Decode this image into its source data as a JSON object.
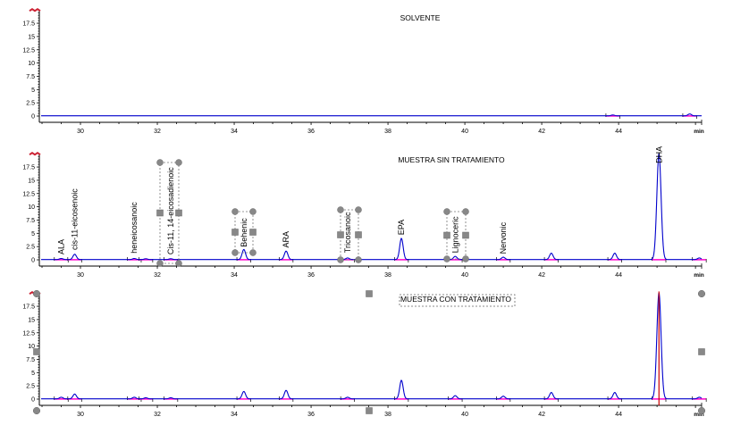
{
  "chart_data": [
    {
      "type": "line",
      "title": "SOLVENTE",
      "xlabel": "min",
      "ylabel": "",
      "xlim": [
        28.93,
        46.16
      ],
      "ylim": [
        -0.5,
        20
      ],
      "x_ticks": [
        30,
        32,
        34,
        36,
        38,
        40,
        42,
        44
      ],
      "y_ticks": [
        0,
        2.5,
        5,
        7.5,
        10,
        12.5,
        15,
        17.5
      ],
      "grid": false,
      "series": [
        {
          "name": "signal",
          "color": "#0000cc",
          "peaks": [
            {
              "rt": 43.85,
              "height": 0.15
            },
            {
              "rt": 45.85,
              "height": 0.35
            }
          ]
        },
        {
          "name": "baseline",
          "color": "#ff00cc"
        }
      ],
      "peak_labels": []
    },
    {
      "type": "line",
      "title": "MUESTRA SIN TRATAMIENTO",
      "xlabel": "min",
      "ylabel": "",
      "xlim": [
        28.93,
        46.16
      ],
      "ylim": [
        -0.5,
        20
      ],
      "x_ticks": [
        30,
        32,
        34,
        36,
        38,
        40,
        42,
        44
      ],
      "y_ticks": [
        0,
        2.5,
        5,
        7.5,
        10,
        12.5,
        15,
        17.5
      ],
      "grid": false,
      "series": [
        {
          "name": "signal",
          "color": "#0000cc",
          "peaks": [
            {
              "rt": 29.5,
              "height": 0.2,
              "label": "ALA"
            },
            {
              "rt": 29.85,
              "height": 1.0,
              "label": "cis-11-eicosenoic"
            },
            {
              "rt": 31.4,
              "height": 0.2,
              "label": "heneicosanoic"
            },
            {
              "rt": 31.7,
              "height": 0.15
            },
            {
              "rt": 32.35,
              "height": 0.15,
              "label": "Cis-11, 14-eicosadienoic"
            },
            {
              "rt": 34.25,
              "height": 1.9,
              "label": "Behenic"
            },
            {
              "rt": 35.35,
              "height": 1.6,
              "label": "ARA"
            },
            {
              "rt": 36.95,
              "height": 0.3,
              "label": "Tricosanoic"
            },
            {
              "rt": 38.35,
              "height": 4.0,
              "label": "EPA"
            },
            {
              "rt": 39.75,
              "height": 0.6,
              "label": "Lignoceric"
            },
            {
              "rt": 41.0,
              "height": 0.45,
              "label": "Nervonic"
            },
            {
              "rt": 42.25,
              "height": 1.2
            },
            {
              "rt": 43.9,
              "height": 1.2
            },
            {
              "rt": 45.05,
              "height": 20.0,
              "label": "DHA"
            },
            {
              "rt": 46.1,
              "height": 0.3
            }
          ]
        },
        {
          "name": "baseline",
          "color": "#ff00cc"
        }
      ],
      "peak_labels": [
        "ALA",
        "cis-11-eicosenoic",
        "heneicosanoic",
        "Cis-11, 14-eicosadienoic",
        "Behenic",
        "ARA",
        "Tricosanoic",
        "EPA",
        "Lignoceric",
        "Nervonic",
        "DHA"
      ]
    },
    {
      "type": "line",
      "title": "MUESTRA CON TRATAMIENTO",
      "xlabel": "min",
      "ylabel": "",
      "xlim": [
        28.93,
        46.16
      ],
      "ylim": [
        -0.5,
        20
      ],
      "x_ticks": [
        30,
        32,
        34,
        36,
        38,
        40,
        42,
        44
      ],
      "y_ticks": [
        0,
        2.5,
        5,
        7.5,
        10,
        12.5,
        15,
        17.5
      ],
      "grid": false,
      "series": [
        {
          "name": "signal",
          "color": "#0000cc",
          "peaks": [
            {
              "rt": 29.5,
              "height": 0.3
            },
            {
              "rt": 29.85,
              "height": 0.9
            },
            {
              "rt": 31.4,
              "height": 0.3
            },
            {
              "rt": 31.7,
              "height": 0.2
            },
            {
              "rt": 32.35,
              "height": 0.2
            },
            {
              "rt": 34.25,
              "height": 1.4
            },
            {
              "rt": 35.35,
              "height": 1.6
            },
            {
              "rt": 36.95,
              "height": 0.3
            },
            {
              "rt": 38.35,
              "height": 3.5
            },
            {
              "rt": 39.75,
              "height": 0.6
            },
            {
              "rt": 41.0,
              "height": 0.5
            },
            {
              "rt": 42.25,
              "height": 1.2
            },
            {
              "rt": 43.9,
              "height": 1.2
            },
            {
              "rt": 45.05,
              "height": 20.0
            },
            {
              "rt": 46.1,
              "height": 0.3
            }
          ]
        },
        {
          "name": "baseline",
          "color": "#ff00cc"
        },
        {
          "name": "marker",
          "color": "#cc0000",
          "x": 45.05
        }
      ],
      "peak_labels": []
    }
  ],
  "panels": [
    {
      "title": "SOLVENTE",
      "x_unit": "min"
    },
    {
      "title": "MUESTRA SIN TRATAMIENTO",
      "x_unit": "min"
    },
    {
      "title": "MUESTRA CON TRATAMIENTO",
      "x_unit": "min"
    }
  ],
  "colors": {
    "signal": "#0000cc",
    "baseline": "#ff00cc",
    "marker": "#cc0000",
    "handle": "#808080"
  }
}
